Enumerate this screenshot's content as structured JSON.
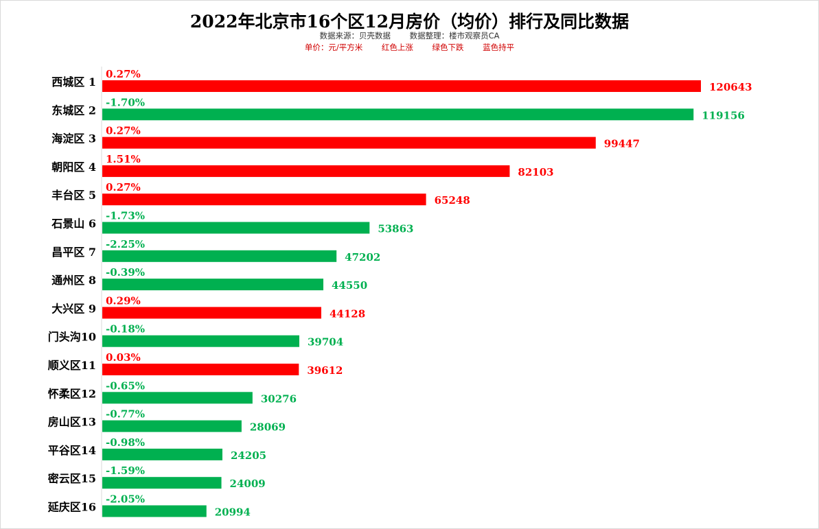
{
  "title": "2022年北京市16个区12月房价（均价）排行及同比数据",
  "subtitle": {
    "source": "数据来源：贝壳数据",
    "organizer": "数据整理：楼市观察员CA"
  },
  "legend": {
    "unit": "单价：元/平方米",
    "up": "红色上涨",
    "down": "绿色下跌",
    "flat": "蓝色持平"
  },
  "colors": {
    "up": "#ff0000",
    "down": "#00b050",
    "flat": "#0070c0"
  },
  "chart_data": {
    "type": "bar",
    "orientation": "horizontal",
    "title": "2022年北京市16个区12月房价（均价）排行及同比数据",
    "xlabel": "",
    "ylabel": "",
    "xlim": [
      0,
      130000
    ],
    "grid": false,
    "categories": [
      "西城区 1",
      "东城区 2",
      "海淀区 3",
      "朝阳区 4",
      "丰台区 5",
      "石景山 6",
      "昌平区 7",
      "通州区 8",
      "大兴区 9",
      "门头沟10",
      "顺义区11",
      "怀柔区12",
      "房山区13",
      "平谷区14",
      "密云区15",
      "延庆区16"
    ],
    "values": [
      120643,
      119156,
      99447,
      82103,
      65248,
      53863,
      47202,
      44550,
      44128,
      39704,
      39612,
      30276,
      28069,
      24205,
      24009,
      20994
    ],
    "value_labels": [
      "120643",
      "119156",
      "99447",
      "82103",
      "65248",
      "53863",
      "47202",
      "44550",
      "44128",
      "39704",
      "39612",
      "30276",
      "28069",
      "24205",
      "24009",
      "20994"
    ],
    "yoy_labels": [
      "0.27%",
      "-1.70%",
      "0.27%",
      "1.51%",
      "0.27%",
      "-1.73%",
      "-2.25%",
      "-0.39%",
      "0.29%",
      "-0.18%",
      "0.03%",
      "-0.65%",
      "-0.77%",
      "-0.98%",
      "-1.59%",
      "-2.05%"
    ],
    "trend": [
      "up",
      "down",
      "up",
      "up",
      "up",
      "down",
      "down",
      "down",
      "up",
      "down",
      "up",
      "down",
      "down",
      "down",
      "down",
      "down"
    ]
  }
}
